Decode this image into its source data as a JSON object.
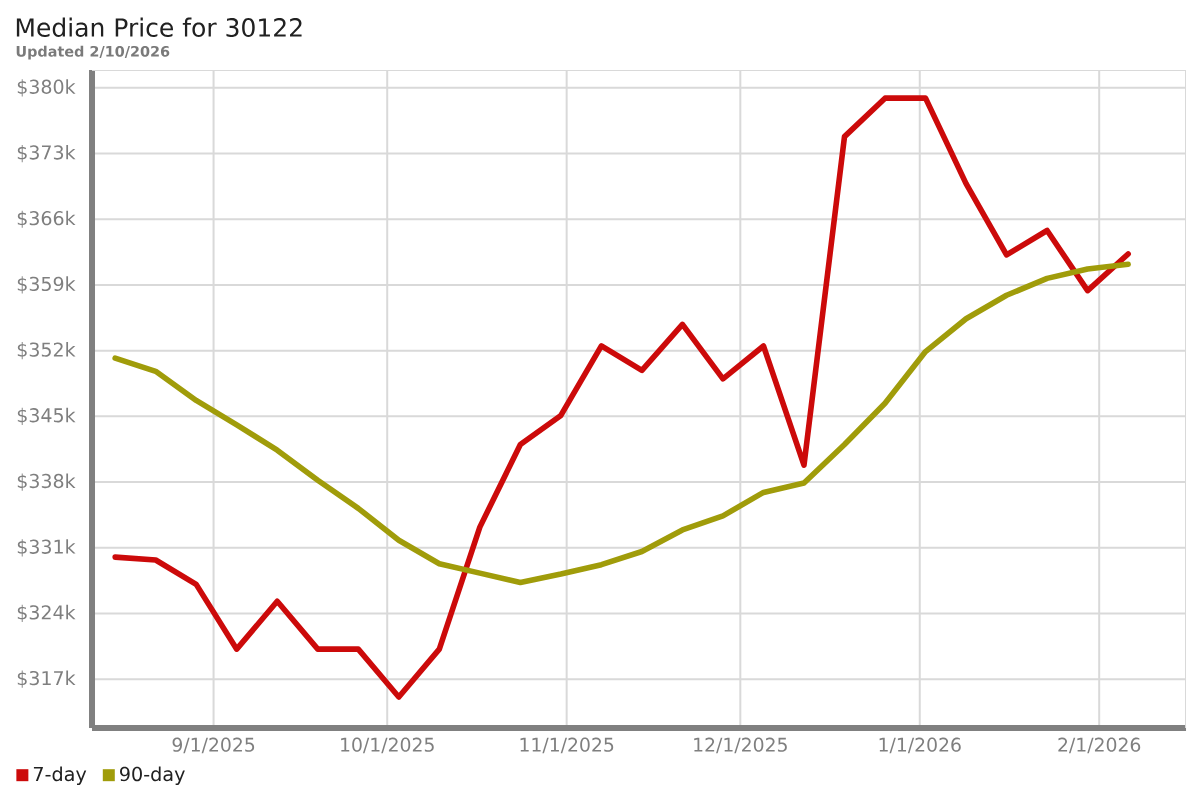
{
  "chart_data": {
    "type": "line",
    "title": "Median Price for 30122",
    "subtitle": "Updated 2/10/2026",
    "x": [
      "2025-08-15",
      "2025-08-22",
      "2025-08-29",
      "2025-09-05",
      "2025-09-12",
      "2025-09-19",
      "2025-09-26",
      "2025-10-03",
      "2025-10-10",
      "2025-10-17",
      "2025-10-24",
      "2025-10-31",
      "2025-11-07",
      "2025-11-14",
      "2025-11-21",
      "2025-11-28",
      "2025-12-05",
      "2025-12-12",
      "2025-12-19",
      "2025-12-26",
      "2026-01-02",
      "2026-01-09",
      "2026-01-16",
      "2026-01-23",
      "2026-01-30",
      "2026-02-06"
    ],
    "series": [
      {
        "name": "7-day",
        "color": "#cc0a0a",
        "values": [
          330000,
          329700,
          327100,
          320200,
          325300,
          320200,
          320200,
          315100,
          320200,
          333200,
          342000,
          345100,
          352500,
          349900,
          354800,
          349000,
          352500,
          339800,
          374800,
          378900,
          378900,
          369800,
          362200,
          364800,
          358400,
          362300
        ]
      },
      {
        "name": "90-day",
        "color": "#a09c0a",
        "values": [
          351200,
          349800,
          346700,
          344100,
          341400,
          338200,
          335200,
          331800,
          329300,
          328300,
          327300,
          328200,
          329200,
          330600,
          332900,
          334400,
          336900,
          337900,
          342000,
          346400,
          351900,
          355400,
          357900,
          359700,
          360700,
          361200
        ]
      }
    ],
    "xlim": [
      "2025-08-11",
      "2026-02-16"
    ],
    "xticks": [
      {
        "value": "2025-09-01",
        "label": "9/1/2025"
      },
      {
        "value": "2025-10-01",
        "label": "10/1/2025"
      },
      {
        "value": "2025-11-01",
        "label": "11/1/2025"
      },
      {
        "value": "2025-12-01",
        "label": "12/1/2025"
      },
      {
        "value": "2026-01-01",
        "label": "1/1/2026"
      },
      {
        "value": "2026-02-01",
        "label": "2/1/2026"
      }
    ],
    "ylim": [
      311800,
      381900
    ],
    "yticks": [
      {
        "value": 317000,
        "label": "$317k"
      },
      {
        "value": 324000,
        "label": "$324k"
      },
      {
        "value": 331000,
        "label": "$331k"
      },
      {
        "value": 338000,
        "label": "$338k"
      },
      {
        "value": 345000,
        "label": "$345k"
      },
      {
        "value": 352000,
        "label": "$352k"
      },
      {
        "value": 359000,
        "label": "$359k"
      },
      {
        "value": 366000,
        "label": "$366k"
      },
      {
        "value": 373000,
        "label": "$373k"
      },
      {
        "value": 380000,
        "label": "$380k"
      }
    ],
    "grid": true,
    "legend": "bottom left"
  }
}
